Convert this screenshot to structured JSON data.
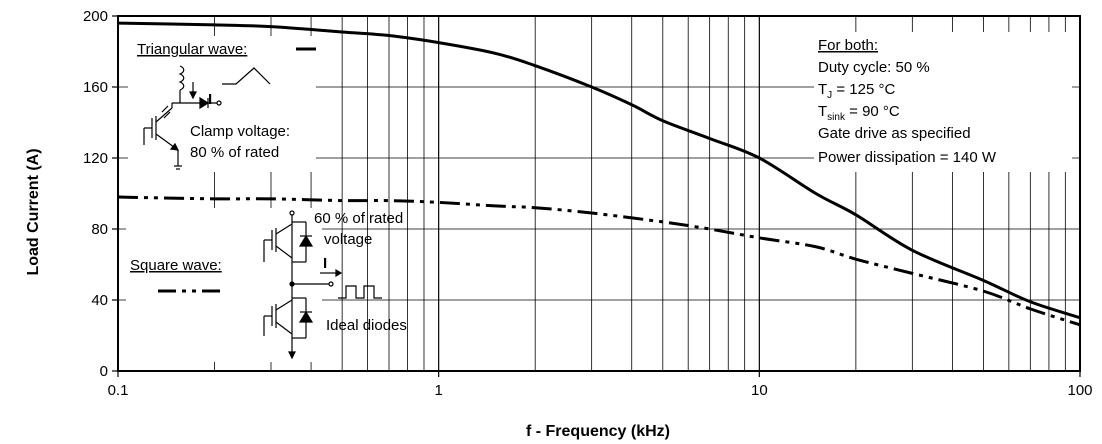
{
  "chart_data": {
    "type": "line",
    "xlabel": "f - Frequency (kHz)",
    "ylabel": "Load Current (A)",
    "xscale": "log",
    "xlim": [
      0.1,
      100
    ],
    "ylim": [
      0,
      200
    ],
    "xticks": [
      0.1,
      1,
      10,
      100
    ],
    "xtick_labels": [
      "0.1",
      "1",
      "10",
      "100"
    ],
    "yticks": [
      0,
      40,
      80,
      120,
      160,
      200
    ],
    "ytick_labels": [
      "0",
      "40",
      "80",
      "120",
      "160",
      "200"
    ],
    "grid": true,
    "series": [
      {
        "name": "Triangular wave:",
        "style": "solid",
        "x": [
          0.1,
          0.2,
          0.3,
          0.5,
          0.7,
          1,
          1.5,
          2,
          3,
          4,
          5,
          7,
          10,
          15,
          20,
          30,
          50,
          70,
          100
        ],
        "y": [
          196,
          195,
          194,
          191,
          189,
          185,
          179,
          172,
          160,
          150,
          141,
          131,
          120,
          100,
          88,
          68,
          51,
          39,
          30
        ]
      },
      {
        "name": "Square wave:",
        "style": "dash-dot-dot",
        "x": [
          0.1,
          0.2,
          0.3,
          0.5,
          0.7,
          1,
          1.5,
          2,
          3,
          5,
          7,
          10,
          15,
          20,
          30,
          50,
          70,
          100
        ],
        "y": [
          98,
          97,
          97,
          96,
          96,
          95,
          93,
          92,
          89,
          84,
          80,
          75,
          70,
          63,
          55,
          45,
          35,
          26
        ]
      }
    ],
    "annotations": {
      "triangular_label": "Triangular wave:",
      "clamp_line1": "Clamp voltage:",
      "clamp_line2": "80 % of rated",
      "square_label": "Square wave:",
      "rated_line1": "60 % of rated",
      "rated_line2": "voltage",
      "ideal_diodes": "Ideal diodes",
      "current_symbol": "I",
      "for_both": "For both:",
      "duty_cycle": "Duty cycle: 50 %",
      "tj_prefix": "T",
      "tj_sub": "J",
      "tj_value": " = 125 °C",
      "tsink_prefix": "T",
      "tsink_sub": "sink",
      "tsink_value": " = 90 °C",
      "gate_drive": "Gate drive as specified",
      "power_dissipation": "Power dissipation = 140 W"
    }
  }
}
